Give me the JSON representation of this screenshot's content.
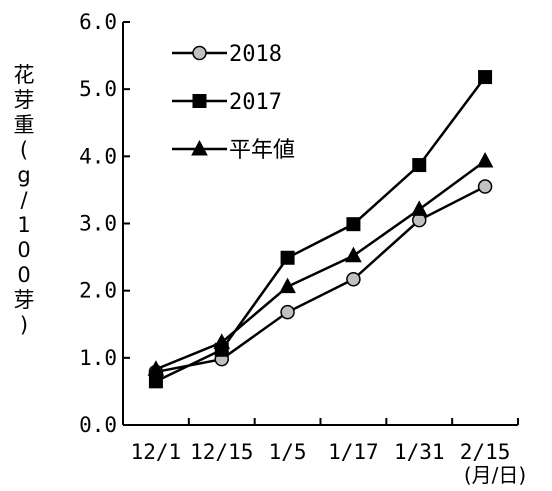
{
  "chart_data": {
    "type": "line",
    "categories": [
      "12/1",
      "12/15",
      "1/5",
      "1/17",
      "1/31",
      "2/15"
    ],
    "x_unit": "(月/日)",
    "ylabel": "花芽重(g/100芽)",
    "ylim": [
      0,
      6
    ],
    "yticks": [
      "0.0",
      "1.0",
      "2.0",
      "3.0",
      "4.0",
      "5.0",
      "6.0"
    ],
    "grid": false,
    "legend_position": "top-left",
    "series": [
      {
        "name": "2018",
        "marker": "circle",
        "color": "#000000",
        "fill": "#c0c0c0",
        "values": [
          0.79,
          0.98,
          1.68,
          2.17,
          3.05,
          3.55
        ]
      },
      {
        "name": "2017",
        "marker": "square",
        "color": "#000000",
        "fill": "#000000",
        "values": [
          0.65,
          1.12,
          2.49,
          2.99,
          3.87,
          5.18
        ]
      },
      {
        "name": "平年値",
        "marker": "triangle",
        "color": "#000000",
        "fill": "#000000",
        "values": [
          0.83,
          1.23,
          2.06,
          2.52,
          3.21,
          3.93
        ]
      }
    ]
  }
}
